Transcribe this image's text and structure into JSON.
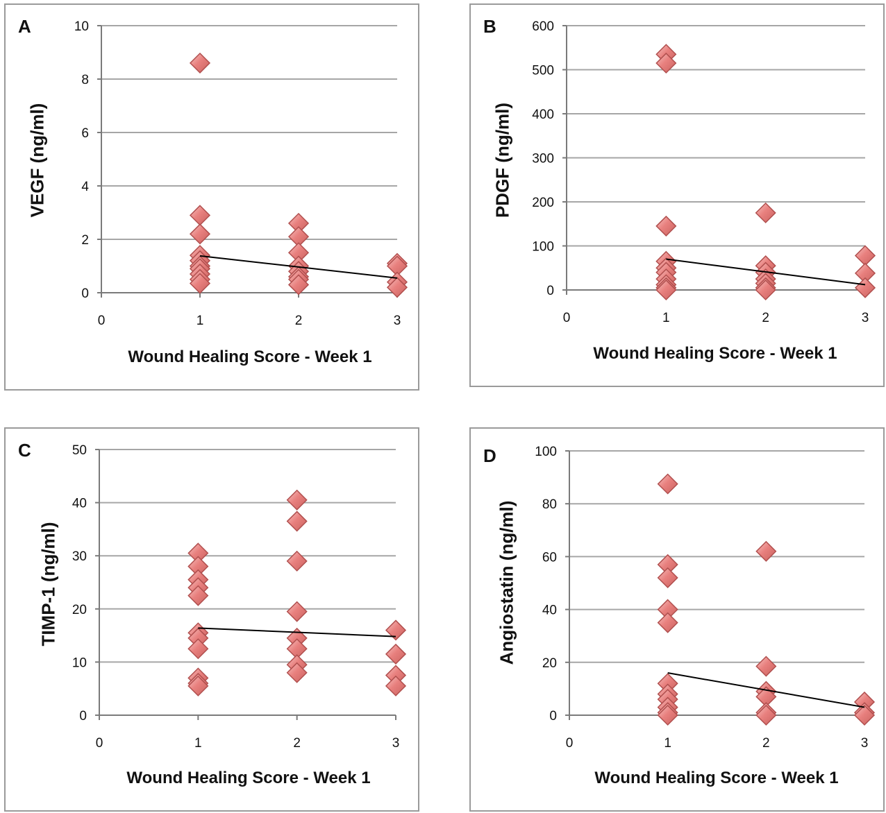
{
  "panels": [
    {
      "letter": "A",
      "ylabel": "VEGF (ng/ml)",
      "xlabel": "Wound Healing Score - Week 1"
    },
    {
      "letter": "B",
      "ylabel": "PDGF (ng/ml)",
      "xlabel": "Wound Healing Score - Week 1"
    },
    {
      "letter": "C",
      "ylabel": "TIMP-1 (ng/ml)",
      "xlabel": "Wound Healing Score - Week 1"
    },
    {
      "letter": "D",
      "ylabel": "Angiostatin (ng/ml)",
      "xlabel": "Wound Healing Score - Week 1"
    }
  ],
  "colors": {
    "marker_fill": "#e8807e",
    "marker_stroke": "#b04f4e",
    "trend": "#000000",
    "grid": "#a6a6a6"
  },
  "chart_data": [
    {
      "type": "scatter",
      "title": "A",
      "xlabel": "Wound Healing Score - Week 1",
      "ylabel": "VEGF (ng/ml)",
      "xlim": [
        0,
        3
      ],
      "ylim": [
        0,
        10
      ],
      "xticks": [
        0,
        1,
        2,
        3
      ],
      "yticks": [
        0,
        2,
        4,
        6,
        8,
        10
      ],
      "grid": true,
      "legend": "none",
      "points": [
        [
          1,
          8.6
        ],
        [
          1,
          2.9
        ],
        [
          1,
          2.2
        ],
        [
          1,
          1.4
        ],
        [
          1,
          1.2
        ],
        [
          1,
          1.0
        ],
        [
          1,
          0.9
        ],
        [
          1,
          0.7
        ],
        [
          1,
          0.5
        ],
        [
          1,
          0.35
        ],
        [
          2,
          2.6
        ],
        [
          2,
          2.1
        ],
        [
          2,
          1.5
        ],
        [
          2,
          1.0
        ],
        [
          2,
          0.8
        ],
        [
          2,
          0.6
        ],
        [
          2,
          0.5
        ],
        [
          2,
          0.3
        ],
        [
          3,
          1.1
        ],
        [
          3,
          1.0
        ],
        [
          3,
          0.4
        ],
        [
          3,
          0.2
        ]
      ],
      "trendline": [
        [
          1,
          1.38
        ],
        [
          3,
          0.55
        ]
      ]
    },
    {
      "type": "scatter",
      "title": "B",
      "xlabel": "Wound Healing Score - Week 1",
      "ylabel": "PDGF (ng/ml)",
      "xlim": [
        0,
        3
      ],
      "ylim": [
        0,
        600
      ],
      "xticks": [
        0,
        1,
        2,
        3
      ],
      "yticks": [
        0,
        100,
        200,
        300,
        400,
        500,
        600
      ],
      "grid": true,
      "legend": "none",
      "points": [
        [
          1,
          535
        ],
        [
          1,
          515
        ],
        [
          1,
          145
        ],
        [
          1,
          65
        ],
        [
          1,
          50
        ],
        [
          1,
          40
        ],
        [
          1,
          25
        ],
        [
          1,
          12
        ],
        [
          1,
          5
        ],
        [
          1,
          0
        ],
        [
          2,
          175
        ],
        [
          2,
          55
        ],
        [
          2,
          40
        ],
        [
          2,
          25
        ],
        [
          2,
          15
        ],
        [
          2,
          5
        ],
        [
          2,
          0
        ],
        [
          3,
          78
        ],
        [
          3,
          38
        ],
        [
          3,
          5
        ]
      ],
      "trendline": [
        [
          1,
          70
        ],
        [
          3,
          12
        ]
      ]
    },
    {
      "type": "scatter",
      "title": "C",
      "xlabel": "Wound Healing Score - Week 1",
      "ylabel": "TIMP-1 (ng/ml)",
      "xlim": [
        0,
        3
      ],
      "ylim": [
        0,
        50
      ],
      "xticks": [
        0,
        1,
        2,
        3
      ],
      "yticks": [
        0,
        10,
        20,
        30,
        40,
        50
      ],
      "grid": true,
      "legend": "none",
      "points": [
        [
          1,
          30.5
        ],
        [
          1,
          28
        ],
        [
          1,
          25.5
        ],
        [
          1,
          24
        ],
        [
          1,
          22.5
        ],
        [
          1,
          15.5
        ],
        [
          1,
          14.5
        ],
        [
          1,
          12.5
        ],
        [
          1,
          7
        ],
        [
          1,
          6
        ],
        [
          1,
          5.5
        ],
        [
          2,
          40.5
        ],
        [
          2,
          36.5
        ],
        [
          2,
          29
        ],
        [
          2,
          19.5
        ],
        [
          2,
          14.5
        ],
        [
          2,
          12.5
        ],
        [
          2,
          9.5
        ],
        [
          2,
          8
        ],
        [
          3,
          16
        ],
        [
          3,
          11.5
        ],
        [
          3,
          7.5
        ],
        [
          3,
          5.5
        ]
      ],
      "trendline": [
        [
          1,
          16.4
        ],
        [
          3,
          14.8
        ]
      ]
    },
    {
      "type": "scatter",
      "title": "D",
      "xlabel": "Wound Healing Score - Week 1",
      "ylabel": "Angiostatin (ng/ml)",
      "xlim": [
        0,
        3
      ],
      "ylim": [
        0,
        100
      ],
      "xticks": [
        0,
        1,
        2,
        3
      ],
      "yticks": [
        0,
        20,
        40,
        60,
        80,
        100
      ],
      "grid": true,
      "legend": "none",
      "points": [
        [
          1,
          87.5
        ],
        [
          1,
          57
        ],
        [
          1,
          52
        ],
        [
          1,
          40
        ],
        [
          1,
          35
        ],
        [
          1,
          12
        ],
        [
          1,
          8
        ],
        [
          1,
          6
        ],
        [
          1,
          3
        ],
        [
          1,
          1
        ],
        [
          1,
          0
        ],
        [
          2,
          62
        ],
        [
          2,
          18.5
        ],
        [
          2,
          9
        ],
        [
          2,
          7
        ],
        [
          2,
          1
        ],
        [
          2,
          0
        ],
        [
          3,
          5
        ],
        [
          3,
          1
        ],
        [
          3,
          0
        ]
      ],
      "trendline": [
        [
          1,
          16
        ],
        [
          3,
          3
        ]
      ]
    }
  ]
}
